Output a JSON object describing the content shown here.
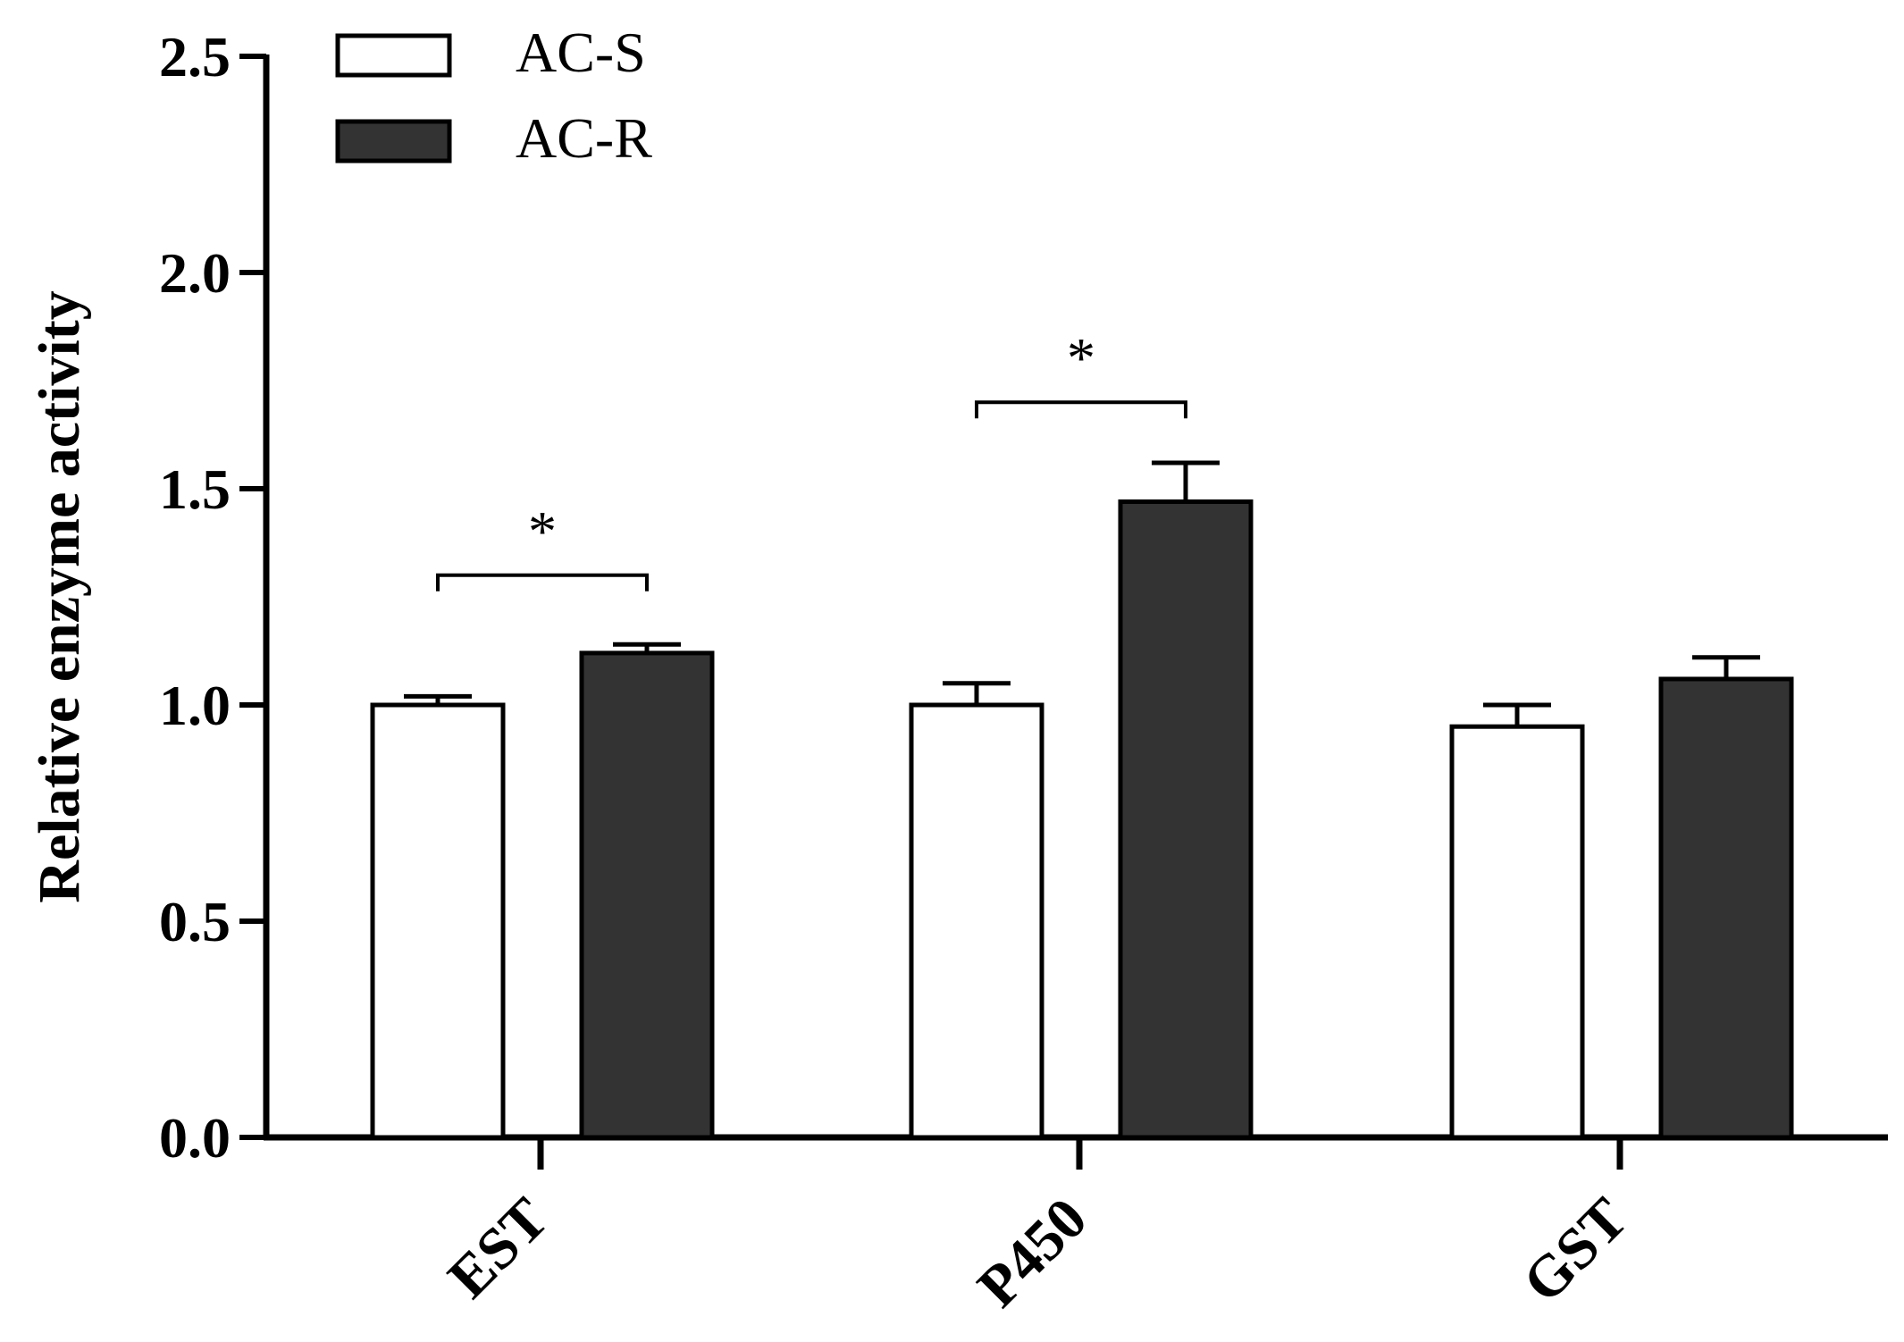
{
  "chart_data": {
    "type": "bar",
    "title": "",
    "xlabel": "",
    "ylabel": "Relative enzyme activity",
    "ylim": [
      0,
      2.5
    ],
    "yticks": [
      "0.0",
      "0.5",
      "1.0",
      "1.5",
      "2.0",
      "2.5"
    ],
    "categories": [
      "EST",
      "P450",
      "GST"
    ],
    "series": [
      {
        "name": "AC-S",
        "values": [
          1.0,
          1.0,
          0.95
        ],
        "errors": [
          0.02,
          0.05,
          0.05
        ],
        "color": "#ffffff"
      },
      {
        "name": "AC-R",
        "values": [
          1.12,
          1.47,
          1.06
        ],
        "errors": [
          0.02,
          0.09,
          0.05
        ],
        "color": "#333333"
      }
    ],
    "significance": [
      {
        "category": "EST",
        "label": "*",
        "bracket_y": 1.3
      },
      {
        "category": "P450",
        "label": "*",
        "bracket_y": 1.7
      }
    ],
    "legend": "top-left",
    "grid": false
  }
}
